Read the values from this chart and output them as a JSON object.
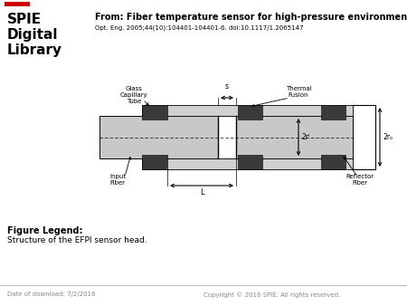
{
  "title_from": "From: Fiber temperature sensor for high-pressure environment",
  "subtitle": "Opt. Eng. 2005;44(10):104401-104401-6. doi:10.1117/1.2065147",
  "figure_legend_label": "Figure Legend:",
  "figure_legend_text": "Structure of the EFPI sensor head.",
  "date_text": "Date of download: 7/2/2016",
  "copyright_text": "Copyright © 2016 SPIE. All rights reserved.",
  "spie_logo_text": "SPIE\nDigital\nLibrary",
  "bg_color": "#ffffff",
  "diagram": {
    "gray_fill": "#c8c8c8",
    "dark_fill": "#3a3a3a",
    "capillary_gray": "#d0d0d0",
    "black": "#000000",
    "label_glass_capillary": "Glass\nCapillary\nTube",
    "label_thermal_fusion": "Thermal\nFusion",
    "label_input_fiber": "Input\nFiber",
    "label_reflector_fiber": "Reflector\nFiber",
    "label_s": "s",
    "label_2ri": "2rᴵ",
    "label_2ro": "2rₒ",
    "label_L": "L"
  }
}
